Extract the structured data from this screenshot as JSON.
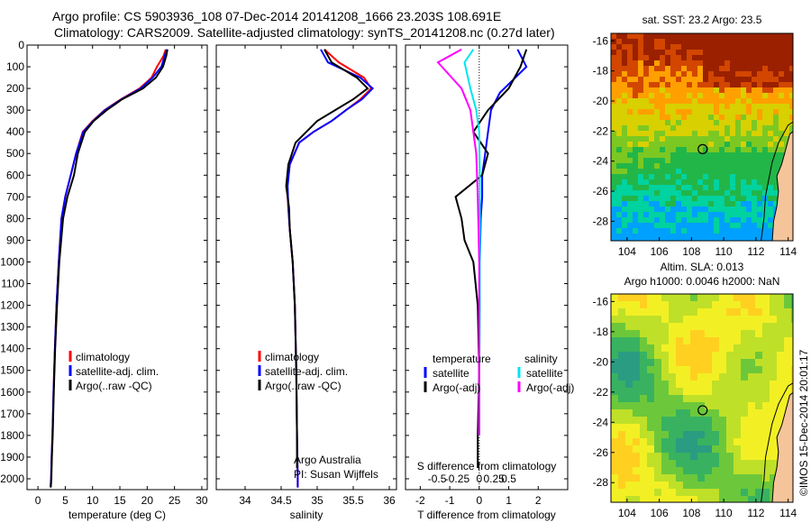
{
  "header": {
    "line1": "Argo profile: CS 5903936_108 07-Dec-2014 20141208_1666 23.203S 108.691E",
    "line2": "Climatology: CARS2009. Satellite-adjusted climatology: synTS_20141208.nc (0.27d later)"
  },
  "stamp": "©IMOS 15-Dec-2014 20:01:17",
  "colors": {
    "climatology": "#ff0000",
    "satellite": "#0000ff",
    "argo": "#000000",
    "s_satellite": "#00e5ee",
    "s_argo": "#ff00ff"
  },
  "chart_data": [
    {
      "type": "line",
      "xlabel": "temperature (deg C)",
      "xlim": [
        -2,
        31
      ],
      "ylim": [
        2050,
        0
      ],
      "xticks": [
        0,
        5,
        10,
        15,
        20,
        25,
        30
      ],
      "yticks": [
        0,
        100,
        200,
        300,
        400,
        500,
        600,
        700,
        800,
        900,
        1000,
        1100,
        1200,
        1300,
        1400,
        1500,
        1600,
        1700,
        1800,
        1900,
        2000
      ],
      "legend": [
        "climatology",
        "satellite-adj. clim.",
        "Argo(..raw -QC)"
      ],
      "legend_loc": "lower-center",
      "series": [
        {
          "name": "climatology",
          "color": "#ff0000",
          "x": [
            23.4,
            23.0,
            21.8,
            20.8,
            18.6,
            15.2,
            12.2,
            10.0,
            8.2,
            7.0,
            6.0,
            5.0,
            4.3,
            3.8,
            3.4,
            3.1,
            2.85,
            2.65,
            2.5,
            2.4,
            2.3
          ],
          "y": [
            20,
            50,
            100,
            150,
            200,
            250,
            300,
            350,
            400,
            500,
            600,
            700,
            800,
            1000,
            1200,
            1400,
            1600,
            1800,
            1900,
            2000,
            2040
          ]
        },
        {
          "name": "satellite-adj. clim.",
          "color": "#0000ff",
          "x": [
            23.6,
            23.2,
            22.6,
            21.0,
            18.8,
            15.3,
            12.3,
            10.1,
            8.3,
            7.0,
            6.0,
            5.0,
            4.3,
            3.8,
            3.4,
            3.1,
            2.85,
            2.65,
            2.5,
            2.4,
            2.3
          ],
          "y": [
            20,
            50,
            100,
            150,
            200,
            250,
            300,
            350,
            400,
            500,
            600,
            700,
            800,
            1000,
            1200,
            1400,
            1600,
            1800,
            1900,
            2000,
            2040
          ]
        },
        {
          "name": "Argo(..raw -QC)",
          "color": "#000000",
          "x": [
            23.7,
            23.5,
            22.9,
            21.6,
            19.2,
            15.4,
            12.6,
            10.2,
            8.6,
            7.3,
            6.6,
            5.4,
            4.6,
            3.9,
            3.5,
            3.15,
            2.9,
            2.7,
            2.55,
            2.45,
            2.35
          ],
          "y": [
            20,
            50,
            100,
            150,
            200,
            250,
            300,
            350,
            400,
            500,
            600,
            700,
            800,
            1000,
            1200,
            1400,
            1600,
            1800,
            1900,
            2000,
            2040
          ]
        }
      ]
    },
    {
      "type": "line",
      "xlabel": "salinity",
      "xlim": [
        33.6,
        36.1
      ],
      "ylim": [
        2050,
        0
      ],
      "xticks": [
        34,
        34.5,
        35,
        35.5,
        36
      ],
      "legend": [
        "climatology",
        "satellite-adj. clim.",
        "Argo(..raw -QC)"
      ],
      "legend_loc": "lower-center",
      "annotations": [
        "Argo Australia",
        "PI: Susan Wijffels"
      ],
      "series": [
        {
          "name": "climatology",
          "color": "#ff0000",
          "x": [
            35.1,
            35.3,
            35.65,
            35.75,
            35.6,
            35.4,
            35.2,
            34.95,
            34.75,
            34.62,
            34.58,
            34.6,
            34.62,
            34.66,
            34.69,
            34.71,
            34.72,
            34.73,
            34.73
          ],
          "y": [
            20,
            80,
            150,
            200,
            250,
            300,
            350,
            400,
            450,
            550,
            650,
            750,
            850,
            1000,
            1200,
            1500,
            1800,
            2000,
            2040
          ]
        },
        {
          "name": "satellite-adj. clim.",
          "color": "#0000ff",
          "x": [
            35.05,
            35.15,
            35.6,
            35.77,
            35.62,
            35.4,
            35.2,
            34.95,
            34.75,
            34.62,
            34.59,
            34.6,
            34.62,
            34.66,
            34.69,
            34.71,
            34.72,
            34.73,
            34.73
          ],
          "y": [
            20,
            80,
            150,
            200,
            250,
            300,
            350,
            400,
            450,
            550,
            650,
            750,
            850,
            1000,
            1200,
            1500,
            1800,
            2000,
            2040
          ]
        },
        {
          "name": "Argo(..raw -QC)",
          "color": "#000000",
          "x": [
            35.1,
            35.2,
            35.55,
            35.7,
            35.5,
            35.25,
            35.0,
            34.85,
            34.7,
            34.6,
            34.57,
            34.61,
            34.62,
            34.66,
            34.69,
            34.71,
            34.72,
            34.72
          ],
          "y": [
            20,
            80,
            150,
            200,
            250,
            300,
            350,
            400,
            450,
            550,
            650,
            750,
            850,
            1000,
            1200,
            1500,
            1800,
            1950
          ]
        }
      ]
    },
    {
      "type": "line",
      "xlabel": "T difference from climatology",
      "xlabel_top": "S difference from climatology",
      "xlim": [
        -2.5,
        3
      ],
      "ylim": [
        2050,
        0
      ],
      "xticks": [
        -2,
        -1,
        0,
        1,
        2
      ],
      "xticks_s": [
        -0.5,
        -0.25,
        0,
        0.25,
        0.5
      ],
      "legend_groups": [
        "temperature",
        "salinity"
      ],
      "legend": [
        "satellite",
        "Argo(-adj)",
        "satellite",
        "Argo(-adj)"
      ],
      "legend_loc": "lower-center",
      "series": [
        {
          "name": "satellite",
          "group": "temperature",
          "color": "#0000ff",
          "x": [
            1.3,
            1.6,
            1.0,
            0.7,
            0.4,
            0.3,
            0.2,
            0.1,
            0.1,
            0.05,
            0.02,
            0.0,
            0.0,
            0.0
          ],
          "y": [
            20,
            100,
            180,
            220,
            300,
            400,
            500,
            600,
            700,
            800,
            1000,
            1300,
            1600,
            1800
          ]
        },
        {
          "name": "Argo(-adj)",
          "group": "temperature",
          "color": "#000000",
          "x": [
            1.6,
            1.4,
            1.0,
            0.3,
            -0.2,
            0.3,
            0.1,
            -0.8,
            -0.6,
            -0.5,
            -0.2,
            -0.05,
            0.0,
            -0.05,
            -0.05
          ],
          "y": [
            20,
            100,
            200,
            300,
            400,
            500,
            600,
            700,
            800,
            900,
            1000,
            1200,
            1500,
            1800,
            1950
          ]
        },
        {
          "name": "satellite",
          "group": "salinity",
          "color": "#00e5ee",
          "x": [
            -0.2,
            -0.5,
            -0.3,
            -0.1,
            0.0,
            0.02,
            0.02,
            0.02,
            0.0,
            0.0
          ],
          "y": [
            20,
            80,
            200,
            300,
            400,
            600,
            800,
            1200,
            1600,
            1800
          ]
        },
        {
          "name": "Argo(-adj)",
          "group": "salinity",
          "color": "#ff00ff",
          "x": [
            -0.6,
            -1.4,
            -0.6,
            -0.3,
            -0.2,
            -0.1,
            -0.05,
            0.0,
            0.0,
            0.0
          ],
          "y": [
            20,
            80,
            200,
            300,
            400,
            500,
            700,
            1000,
            1400,
            1800
          ]
        }
      ]
    },
    {
      "type": "heatmap",
      "title": "sat. SST: 23.2  Argo: 23.5",
      "xlim": [
        103,
        114.3
      ],
      "ylim": [
        -29.3,
        -15.5
      ],
      "xticks": [
        104,
        106,
        108,
        110,
        112,
        114
      ],
      "yticks": [
        -16,
        -18,
        -20,
        -22,
        -24,
        -26,
        -28
      ],
      "marker": {
        "lon": 108.691,
        "lat": -23.203
      },
      "palette": [
        "#00a0ff",
        "#00d2a0",
        "#22b648",
        "#7cc822",
        "#d8d000",
        "#ffa000",
        "#d24600",
        "#9a2000"
      ]
    },
    {
      "type": "heatmap",
      "title": "Altim. SLA: 0.013",
      "subtitle": "Argo h1000: 0.0046 h2000: NaN",
      "xlim": [
        103,
        114.3
      ],
      "ylim": [
        -29.3,
        -15.5
      ],
      "xticks": [
        104,
        106,
        108,
        110,
        112,
        114
      ],
      "yticks": [
        -16,
        -18,
        -20,
        -22,
        -24,
        -26,
        -28
      ],
      "marker": {
        "lon": 108.691,
        "lat": -23.203
      },
      "palette": [
        "#2a9c82",
        "#38b260",
        "#6cc83a",
        "#bfe028",
        "#f2f024",
        "#ffd020",
        "#ffae30"
      ]
    }
  ]
}
